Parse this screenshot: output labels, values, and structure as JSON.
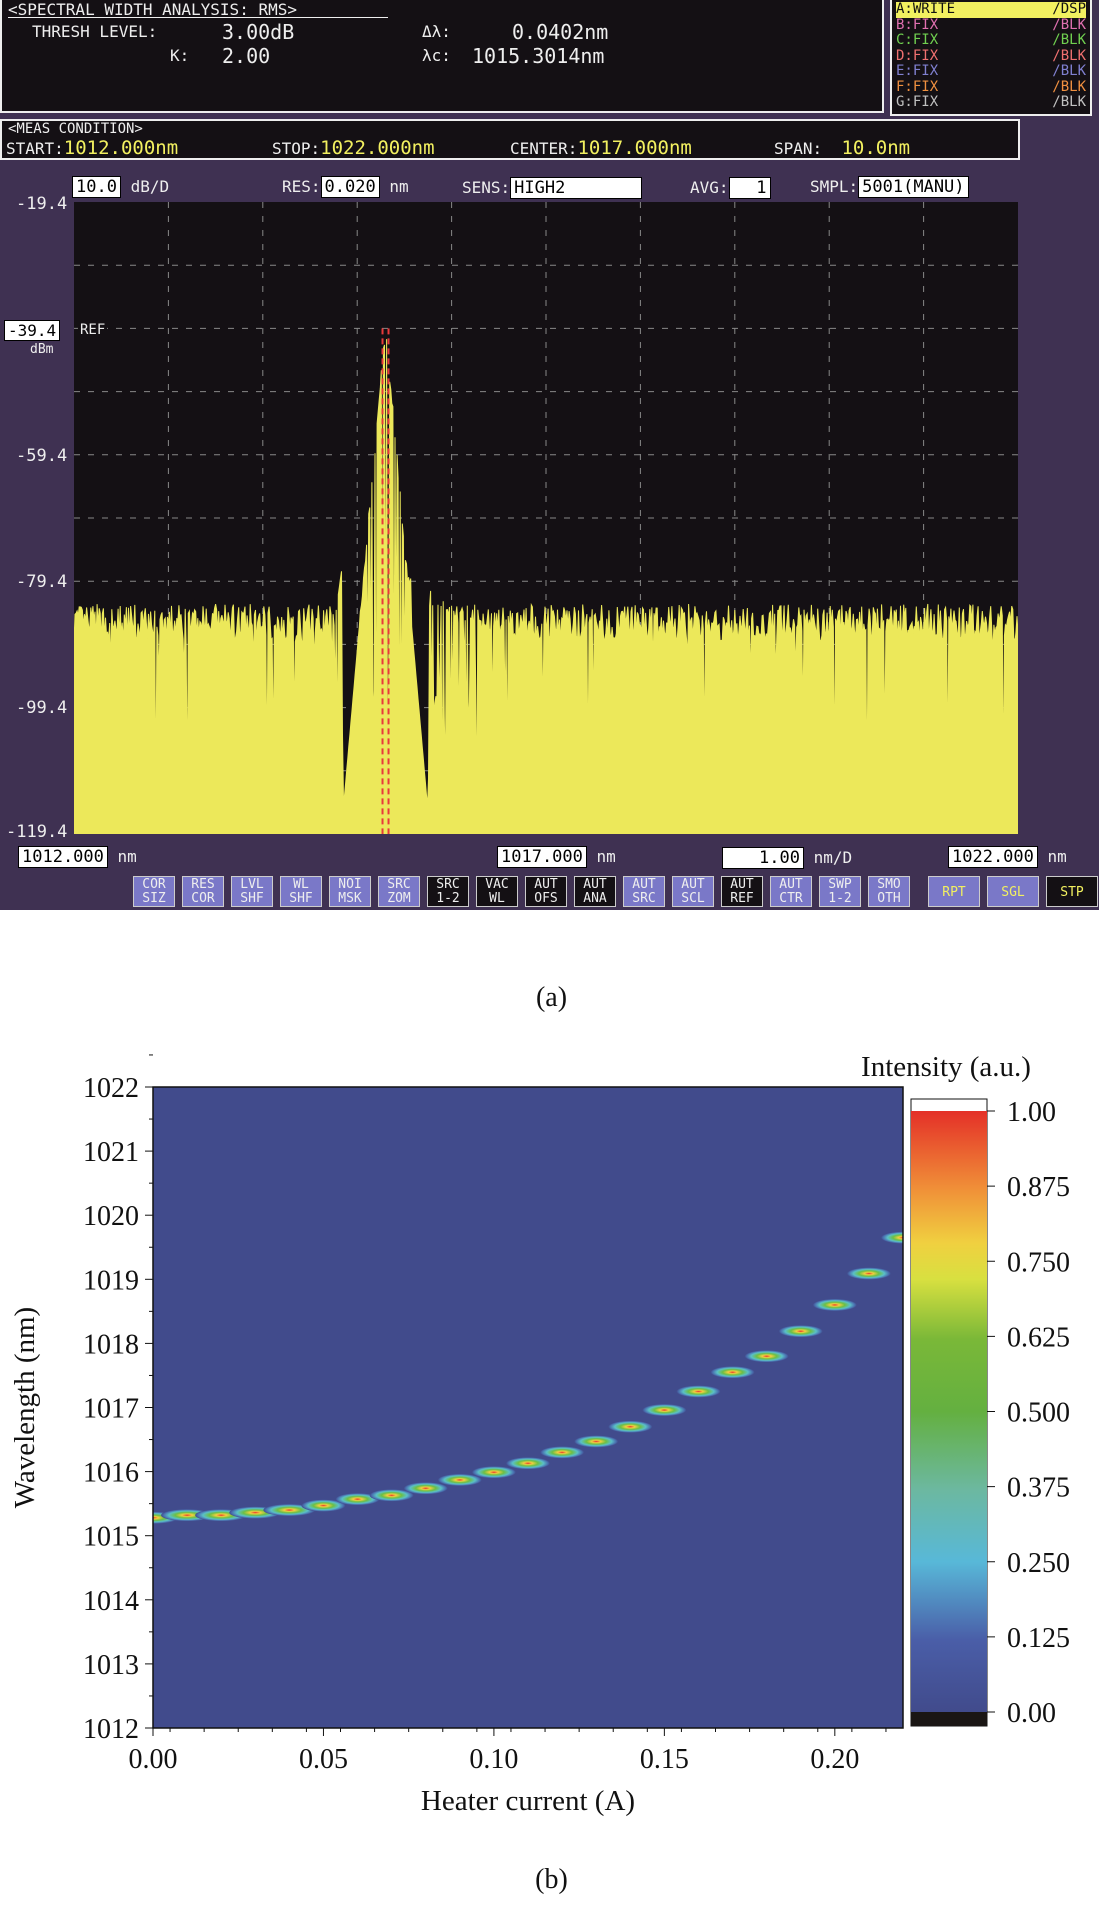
{
  "analysis": {
    "title": "<SPECTRAL WIDTH ANALYSIS: RMS>",
    "thresh_label": "THRESH LEVEL:",
    "thresh_value": "3.00dB",
    "k_label": "K:",
    "k_value": "2.00",
    "dl_label": "Δλ:",
    "dl_value": "0.0402nm",
    "lc_label": "λc:",
    "lc_value": "1015.3014nm"
  },
  "traces": [
    {
      "name": "A:WRITE",
      "mode": "/DSP",
      "color": "#111"
    },
    {
      "name": "B:FIX",
      "mode": "/BLK",
      "color": "#e070b0"
    },
    {
      "name": "C:FIX",
      "mode": "/BLK",
      "color": "#70d050"
    },
    {
      "name": "D:FIX",
      "mode": "/BLK",
      "color": "#f07070"
    },
    {
      "name": "E:FIX",
      "mode": "/BLK",
      "color": "#8080d0"
    },
    {
      "name": "F:FIX",
      "mode": "/BLK",
      "color": "#f09040"
    },
    {
      "name": "G:FIX",
      "mode": "/BLK",
      "color": "#c0c0c0"
    }
  ],
  "meas": {
    "title": "<MEAS CONDITION>",
    "start_label": "START:",
    "start": "1012.000nm",
    "stop_label": "STOP:",
    "stop": "1022.000nm",
    "center_label": "CENTER:",
    "center": "1017.000nm",
    "span_label": "SPAN:",
    "span": "10.0nm"
  },
  "controls": {
    "scale": "10.0",
    "scale_unit": "dB/D",
    "res_label": "RES:",
    "res": "0.020",
    "res_unit": "nm",
    "sens_label": "SENS:",
    "sens": "HIGH2",
    "avg_label": "AVG:",
    "avg": "1",
    "smpl_label": "SMPL:",
    "smpl": "5001(MANU)"
  },
  "yaxis": {
    "top": "-19.4",
    "ref": "-39.4",
    "ref_label": "REF",
    "unit": "dBm",
    "l3": "-59.4",
    "l4": "-79.4",
    "l5": "-99.4",
    "bottom": "-119.4"
  },
  "xaxis": {
    "start": "1012.000",
    "center": "1017.000",
    "stop": "1022.000",
    "unit": "nm",
    "div": "1.00",
    "div_unit": "nm/D"
  },
  "buttons": [
    [
      "COR",
      "SIZ",
      ""
    ],
    [
      "RES",
      "COR",
      ""
    ],
    [
      "LVL",
      "SHF",
      ""
    ],
    [
      "WL",
      "SHF",
      ""
    ],
    [
      "NOI",
      "MSK",
      ""
    ],
    [
      "SRC",
      "ZOM",
      ""
    ],
    [
      "SRC",
      "1-2",
      "dark"
    ],
    [
      "VAC",
      "WL",
      "dark"
    ],
    [
      "AUT",
      "OFS",
      "dark"
    ],
    [
      "AUT",
      "ANA",
      "dark"
    ],
    [
      "AUT",
      "SRC",
      ""
    ],
    [
      "AUT",
      "SCL",
      ""
    ],
    [
      "AUT",
      "REF",
      "dark"
    ],
    [
      "AUT",
      "CTR",
      ""
    ],
    [
      "SWP",
      "1-2",
      ""
    ],
    [
      "SMO",
      "OTH",
      ""
    ]
  ],
  "big_buttons": [
    [
      "RPT",
      ""
    ],
    [
      "SGL",
      ""
    ],
    [
      "STP",
      "dark"
    ]
  ],
  "caption_a": "(a)",
  "caption_b": "(b)",
  "spectrum": {
    "peak_nm": 1015.3,
    "peak_dbm": -39.4,
    "side_peak_nm": 1014.85,
    "side_peak_dbm": -76,
    "noise_floor_dbm": -86,
    "xlim": [
      1012,
      1022
    ],
    "ylim": [
      -119.4,
      -19.4
    ]
  },
  "chart_data": {
    "type": "heatmap",
    "title": "",
    "xlabel": "Heater current (A)",
    "ylabel": "Wavelength (nm)",
    "colorbar_label": "Intensity (a.u.)",
    "xlim": [
      0,
      0.22
    ],
    "ylim": [
      1012,
      1022
    ],
    "xticks": [
      "0.00",
      "0.05",
      "0.10",
      "0.15",
      "0.20"
    ],
    "yticks": [
      "1012",
      "1013",
      "1014",
      "1015",
      "1016",
      "1017",
      "1018",
      "1019",
      "1020",
      "1021",
      "1022"
    ],
    "cticks": [
      "0.00",
      "0.125",
      "0.250",
      "0.375",
      "0.500",
      "0.625",
      "0.750",
      "0.875",
      "1.00"
    ],
    "peaks": {
      "current": [
        0,
        0.01,
        0.02,
        0.03,
        0.04,
        0.05,
        0.06,
        0.07,
        0.08,
        0.09,
        0.1,
        0.11,
        0.12,
        0.13,
        0.14,
        0.15,
        0.16,
        0.17,
        0.18,
        0.19,
        0.2,
        0.21,
        0.22
      ],
      "wavelength": [
        1015.28,
        1015.32,
        1015.32,
        1015.36,
        1015.4,
        1015.47,
        1015.57,
        1015.63,
        1015.74,
        1015.87,
        1015.99,
        1016.13,
        1016.3,
        1016.47,
        1016.7,
        1016.96,
        1017.25,
        1017.55,
        1017.8,
        1018.19,
        1018.6,
        1019.09,
        1019.65
      ]
    }
  }
}
